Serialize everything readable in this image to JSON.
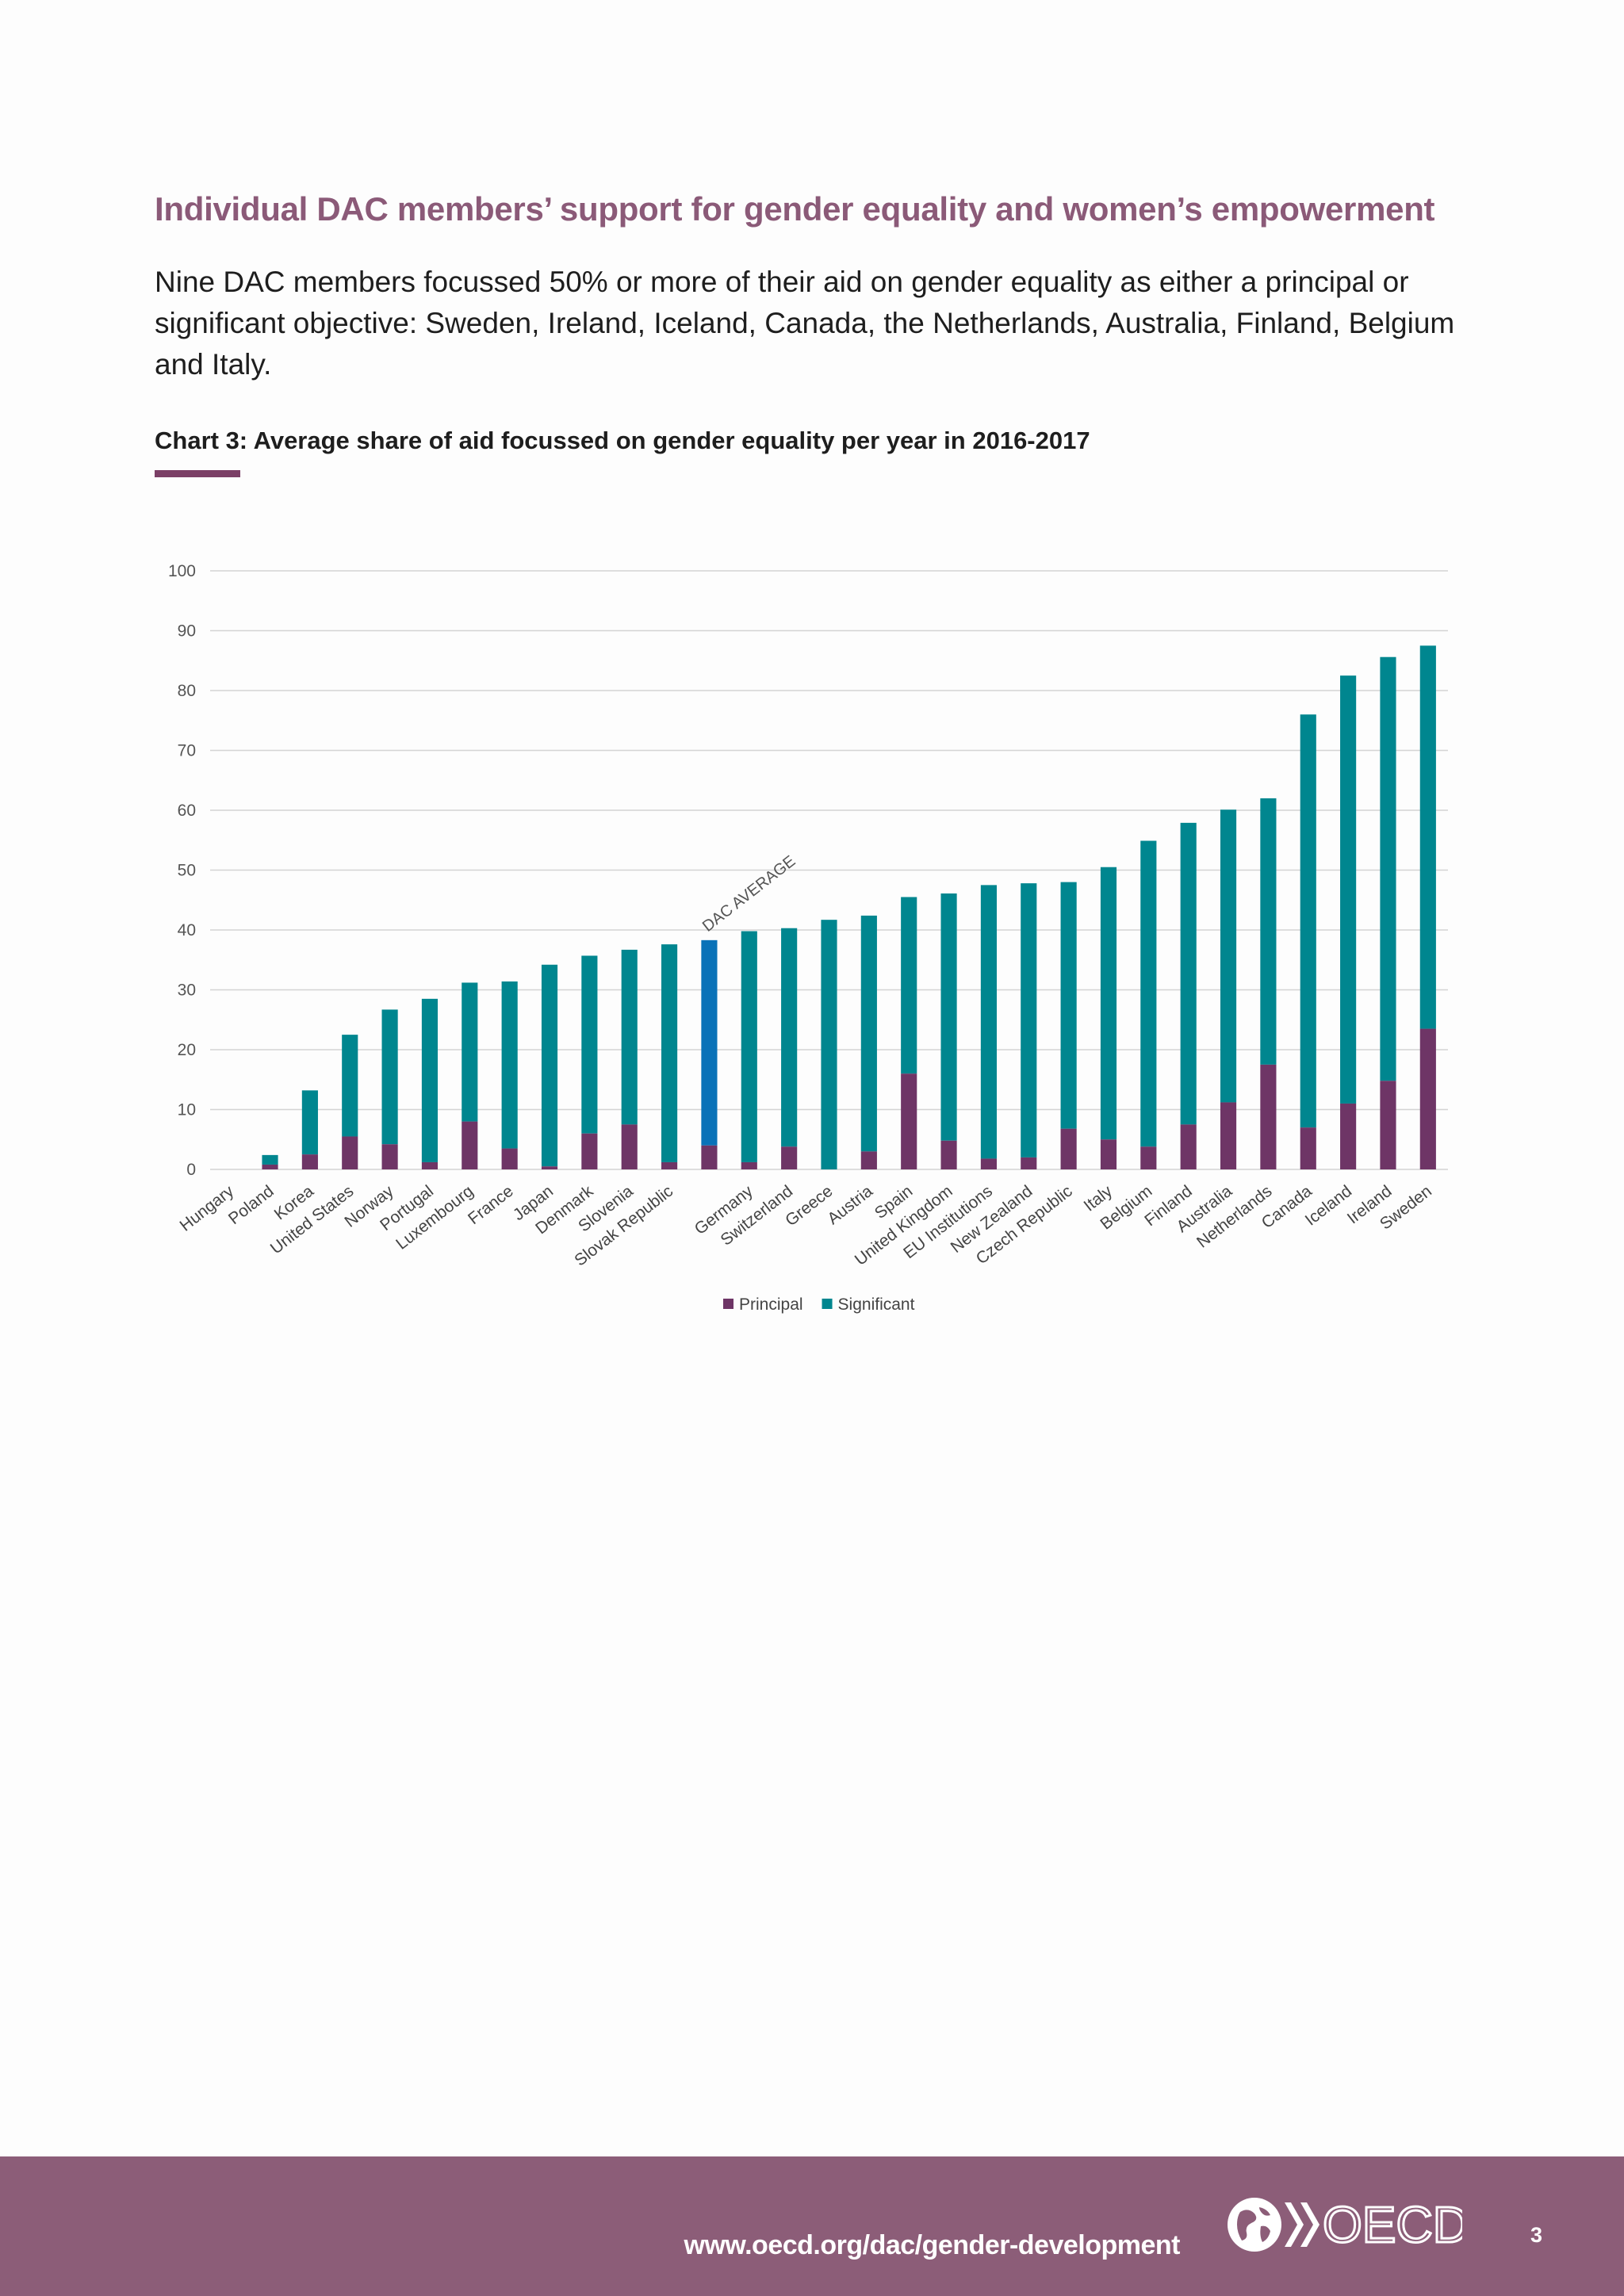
{
  "page": {
    "heading": "Individual DAC members’ support for gender equality and women’s empowerment",
    "intro": "Nine DAC members focussed 50% or more of their aid on gender equality as either a principal or significant objective: Sweden, Ireland, Iceland, Canada, the Netherlands, Australia, Finland, Belgium and Italy.",
    "chart_caption": "Chart 3: Average share of aid focussed on gender equality per year in 2016-2017"
  },
  "colors": {
    "principal": "#6e3566",
    "significant": "#00868f",
    "dac_average": "#0a72b8",
    "heading": "#8b5a78",
    "footer": "#8c5d78"
  },
  "chart_data": {
    "type": "bar",
    "stacked": true,
    "categories": [
      "Hungary",
      "Poland",
      "Korea",
      "United States",
      "Norway",
      "Portugal",
      "Luxembourg",
      "France",
      "Japan",
      "Denmark",
      "Slovenia",
      "Slovak Republic",
      "",
      "Germany",
      "Switzerland",
      "Greece",
      "Austria",
      "Spain",
      "United Kingdom",
      "EU Institutions",
      "New Zealand",
      "Czech Republic",
      "Italy",
      "Belgium",
      "Finland",
      "Australia",
      "Netherlands",
      "Canada",
      "Iceland",
      "Ireland",
      "Sweden"
    ],
    "series": [
      {
        "name": "Principal",
        "values": [
          0,
          0.8,
          2.5,
          5.5,
          4.2,
          1.2,
          8.0,
          3.5,
          0.5,
          6.0,
          7.5,
          1.2,
          4.0,
          1.2,
          3.8,
          0,
          3.0,
          16.0,
          4.8,
          1.8,
          2.0,
          6.8,
          5.0,
          3.8,
          7.5,
          11.2,
          17.5,
          7.0,
          11.0,
          14.8,
          23.5
        ]
      },
      {
        "name": "Significant",
        "values": [
          0,
          1.6,
          10.7,
          17.0,
          22.5,
          27.3,
          23.2,
          27.9,
          33.7,
          29.7,
          29.2,
          36.4,
          34.3,
          38.6,
          36.5,
          41.7,
          39.4,
          29.5,
          41.3,
          45.7,
          45.8,
          41.2,
          45.5,
          51.1,
          50.4,
          48.9,
          44.5,
          69.0,
          71.5,
          70.8,
          64.0
        ]
      }
    ],
    "highlight_index": 12,
    "annotations": [
      {
        "category_index": 12,
        "text": "DAC AVERAGE"
      }
    ],
    "y_ticks": [
      "0",
      "10",
      "20",
      "30",
      "40",
      "50",
      "60",
      "70",
      "80",
      "90",
      "100"
    ],
    "ylim": [
      0,
      100
    ],
    "grid": true,
    "legend_placement": "bottom-center"
  },
  "footer": {
    "url": "www.oecd.org/dac/gender-development",
    "logo_text": "OECD",
    "page_number": "3"
  }
}
